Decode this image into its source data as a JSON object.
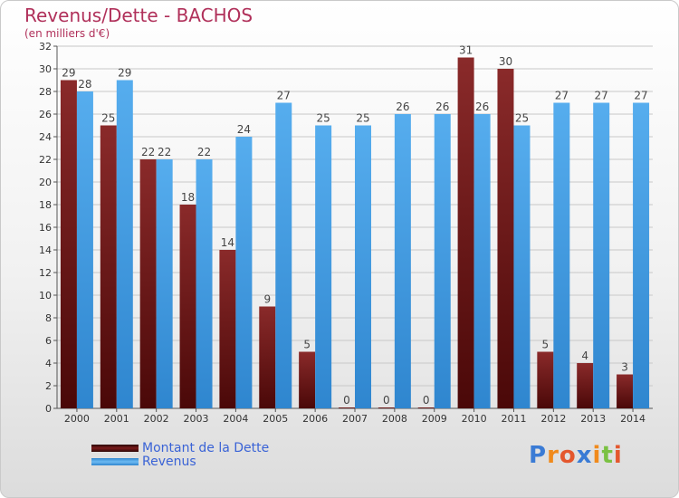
{
  "header": {
    "title": "Revenus/Dette - BACHOS",
    "subtitle": "(en milliers d'€)"
  },
  "legend": {
    "items": [
      {
        "label": "Montant de la Dette",
        "color": "#7a1a1a"
      },
      {
        "label": "Revenus",
        "color": "#4aa2e6"
      }
    ]
  },
  "logo": {
    "text": "Proxiti",
    "letter_colors": [
      "#3a7bd5",
      "#f08a1c",
      "#e4572e",
      "#3a7bd5",
      "#f08a1c",
      "#7ac142",
      "#e4572e"
    ]
  },
  "chart_data": {
    "type": "bar",
    "categories": [
      "2000",
      "2001",
      "2002",
      "2003",
      "2004",
      "2005",
      "2006",
      "2007",
      "2008",
      "2009",
      "2010",
      "2011",
      "2012",
      "2013",
      "2014"
    ],
    "series": [
      {
        "name": "Montant de la Dette",
        "values": [
          29,
          25,
          22,
          18,
          14,
          9,
          5,
          0,
          0,
          0,
          31,
          30,
          5,
          4,
          3
        ],
        "color": "#7a1a1a"
      },
      {
        "name": "Revenus",
        "values": [
          28,
          29,
          22,
          22,
          24,
          27,
          25,
          25,
          26,
          26,
          26,
          25,
          27,
          27,
          27
        ],
        "color": "#4aa2e6"
      }
    ],
    "ylim": [
      0,
      32
    ],
    "yticks": [
      0,
      2,
      4,
      6,
      8,
      10,
      12,
      14,
      16,
      18,
      20,
      22,
      24,
      26,
      28,
      30,
      32
    ],
    "grid": true,
    "legend_position": "bottom-left"
  }
}
